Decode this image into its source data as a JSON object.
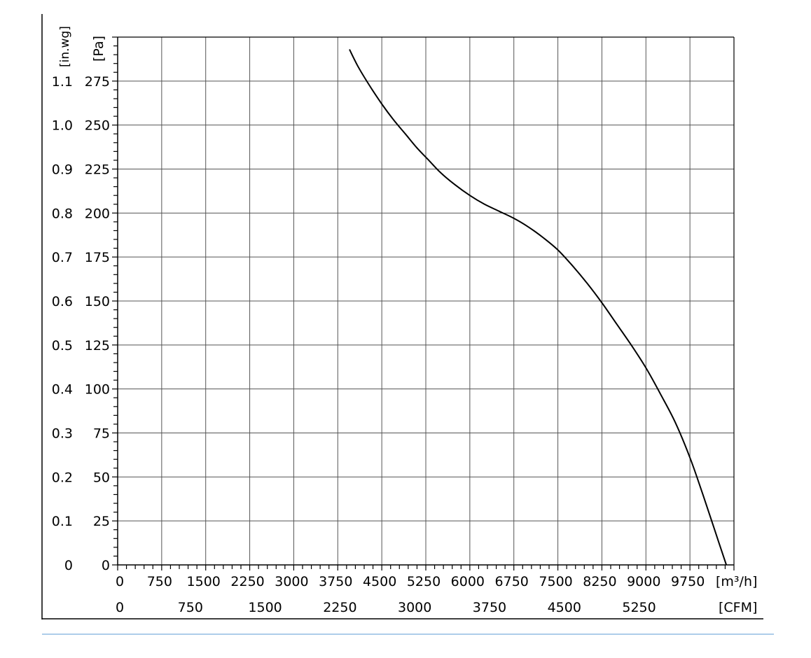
{
  "chart_data": {
    "type": "line",
    "x_unit_primary": "[m³/h]",
    "x_unit_secondary": "[CFM]",
    "y_unit_primary": "[Pa]",
    "y_unit_secondary": "[in.wg]",
    "xlim": [
      0,
      10500
    ],
    "ylim": [
      0,
      300
    ],
    "grid": true,
    "x_ticks_primary": [
      "0",
      "750",
      "1500",
      "2250",
      "3000",
      "3750",
      "4500",
      "5250",
      "6000",
      "6750",
      "7500",
      "8250",
      "9000",
      "9750"
    ],
    "x_ticks_primary_values": [
      0,
      750,
      1500,
      2250,
      3000,
      3750,
      4500,
      5250,
      6000,
      6750,
      7500,
      8250,
      9000,
      9750
    ],
    "x_ticks_secondary": [
      "0",
      "750",
      "1500",
      "2250",
      "3000",
      "3750",
      "4500",
      "5250"
    ],
    "x_ticks_secondary_values": [
      0,
      750,
      1500,
      2250,
      3000,
      3750,
      4500,
      5250
    ],
    "y_ticks_primary": [
      "0",
      "25",
      "50",
      "75",
      "100",
      "125",
      "150",
      "175",
      "200",
      "225",
      "250",
      "275"
    ],
    "y_ticks_primary_values": [
      0,
      25,
      50,
      75,
      100,
      125,
      150,
      175,
      200,
      225,
      250,
      275
    ],
    "y_ticks_secondary": [
      "0",
      "0.1",
      "0.2",
      "0.3",
      "0.4",
      "0.5",
      "0.6",
      "0.7",
      "0.8",
      "0.9",
      "1.0",
      "1.1"
    ],
    "y_ticks_secondary_values": [
      0,
      0.1,
      0.2,
      0.3,
      0.4,
      0.5,
      0.6,
      0.7,
      0.8,
      0.9,
      1.0,
      1.1
    ],
    "series": [
      {
        "x": [
          3950,
          4100,
          4300,
          4500,
          4700,
          4900,
          5100,
          5300,
          5500,
          5750,
          6000,
          6250,
          6500,
          6750,
          7000,
          7250,
          7500,
          7750,
          8000,
          8250,
          8500,
          8750,
          9000,
          9250,
          9500,
          9750,
          9950,
          10150,
          10370
        ],
        "y": [
          293,
          283,
          272,
          262,
          253,
          245,
          237,
          230,
          223,
          216,
          210,
          205,
          201,
          197,
          192,
          186,
          179,
          170,
          160,
          149,
          137,
          125,
          112,
          97,
          81,
          61,
          42,
          22,
          0
        ]
      }
    ]
  }
}
